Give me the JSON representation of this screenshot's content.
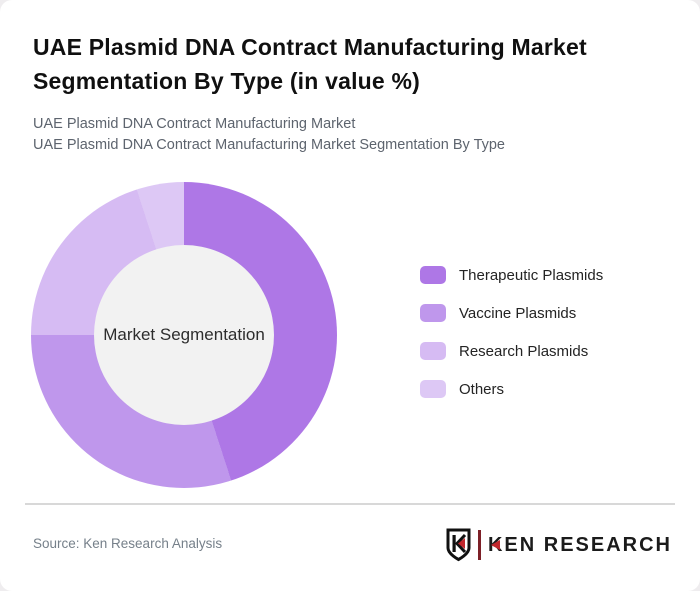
{
  "header": {
    "title": "UAE Plasmid DNA Contract Manufacturing Market Segmentation By Type (in value %)",
    "subtitle_line1": "UAE Plasmid DNA Contract Manufacturing Market",
    "subtitle_line2": "UAE Plasmid DNA Contract Manufacturing Market Segmentation By Type"
  },
  "chart_data": {
    "type": "pie",
    "variant": "donut",
    "title": "UAE Plasmid DNA Contract Manufacturing Market Segmentation By Type (in value %)",
    "center_label": "Market Segmentation",
    "categories": [
      "Therapeutic Plasmids",
      "Vaccine Plasmids",
      "Research Plasmids",
      "Others"
    ],
    "values": [
      45,
      30,
      20,
      5
    ],
    "unit": "%",
    "colors": [
      "#ae77e6",
      "#bf97ec",
      "#d6bbf3",
      "#ddc8f5"
    ],
    "start_angle_deg": 0,
    "direction": "clockwise",
    "legend_position": "right",
    "inner_circle_color": "#f2f2f2"
  },
  "footer": {
    "source": "Source: Ken Research Analysis",
    "brand": "KEN RESEARCH",
    "brand_accent_color": "#c0272d"
  }
}
